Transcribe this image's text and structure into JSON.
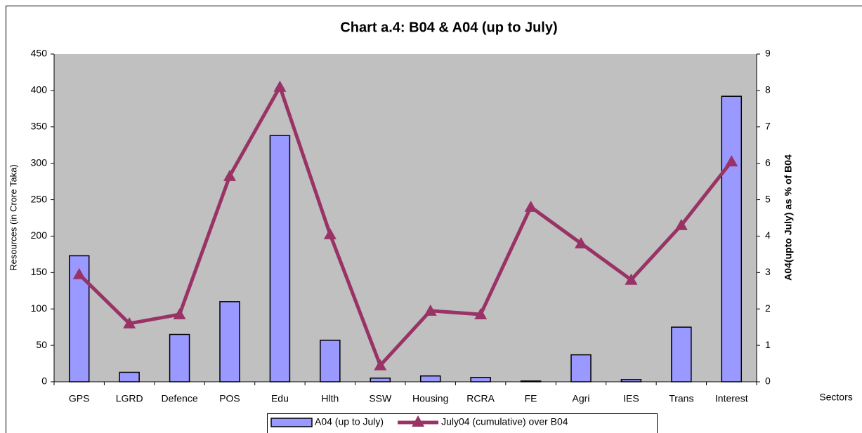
{
  "chart_data": {
    "type": "bar_line",
    "title": "Chart a.4: B04 & A04 (up to July)",
    "y_label": "Resources (in Crore Taka)",
    "y2_label": "A04(upto July) as % of B04",
    "x_label": "Sectors",
    "categories": [
      "GPS",
      "LGRD",
      "Defence",
      "POS",
      "Edu",
      "Hlth",
      "SSW",
      "Housing",
      "RCRA",
      "FE",
      "Agri",
      "IES",
      "Trans",
      "Interest"
    ],
    "series": [
      {
        "name": "A04 (up to July)",
        "type": "bar",
        "color": "#9999ff",
        "values": [
          173,
          13,
          65,
          110,
          338,
          57,
          5,
          8,
          6,
          1,
          37,
          3,
          75,
          392
        ]
      },
      {
        "name": "July04 (cumulative) over B04",
        "type": "line",
        "axis": "y2",
        "color": "#993366",
        "values": [
          2.95,
          1.6,
          1.85,
          5.65,
          8.1,
          4.05,
          0.45,
          1.95,
          1.85,
          4.8,
          3.8,
          2.8,
          4.3,
          6.05
        ]
      }
    ],
    "ylim": [
      0,
      450
    ],
    "yticks": [
      0,
      50,
      100,
      150,
      200,
      250,
      300,
      350,
      400,
      450
    ],
    "y2lim": [
      0,
      9
    ],
    "y2ticks": [
      0,
      1,
      2,
      3,
      4,
      5,
      6,
      7,
      8,
      9
    ],
    "plot_background": "#c0c0c0"
  }
}
